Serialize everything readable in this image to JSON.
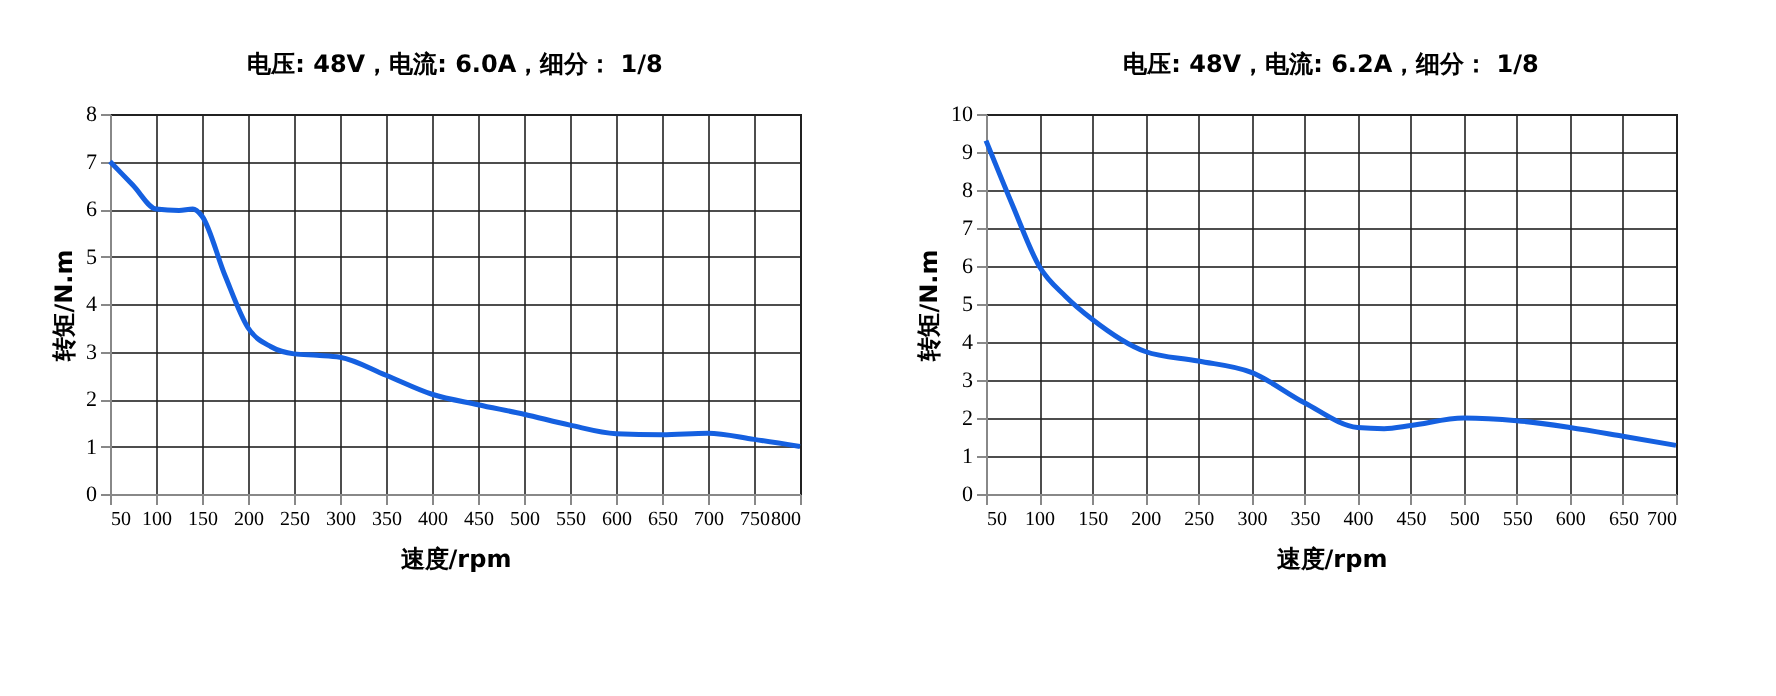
{
  "chart_data": [
    {
      "type": "line",
      "subtitle": "电压: 48V，电流: 6.0A，细分： 1/8",
      "xlabel": "速度/rpm",
      "ylabel": "转矩/N.m",
      "x": [
        50,
        75,
        100,
        125,
        140,
        150,
        175,
        200,
        225,
        250,
        275,
        300,
        350,
        400,
        450,
        500,
        550,
        600,
        650,
        700,
        750,
        800
      ],
      "series": [
        {
          "color": "#1560e0",
          "values": [
            7.0,
            6.5,
            6.0,
            5.97,
            6.0,
            5.85,
            4.6,
            3.5,
            3.1,
            2.95,
            2.92,
            2.88,
            2.5,
            2.1,
            1.88,
            1.68,
            1.45,
            1.27,
            1.25,
            1.28,
            1.15,
            1.0
          ]
        }
      ],
      "xlim": [
        50,
        800
      ],
      "xticks": [
        50,
        100,
        150,
        200,
        250,
        300,
        350,
        400,
        450,
        500,
        550,
        600,
        650,
        700,
        750,
        800
      ],
      "ylim": [
        0,
        8
      ],
      "yticks": [
        0,
        1,
        2,
        3,
        4,
        5,
        6,
        7,
        8
      ],
      "grid": true,
      "marker": "none",
      "line_style": "solid"
    },
    {
      "type": "line",
      "subtitle": "电压: 48V，电流: 6.2A，细分： 1/8",
      "xlabel": "速度/rpm",
      "ylabel": "转矩/N.m",
      "x": [
        50,
        75,
        100,
        125,
        150,
        200,
        250,
        300,
        350,
        400,
        425,
        450,
        500,
        550,
        600,
        650,
        700
      ],
      "series": [
        {
          "color": "#1560e0",
          "values": [
            9.3,
            7.6,
            6.0,
            5.2,
            4.6,
            3.75,
            3.5,
            3.2,
            2.4,
            1.75,
            1.72,
            1.8,
            2.0,
            1.93,
            1.75,
            1.52,
            1.28
          ]
        }
      ],
      "xlim": [
        50,
        700
      ],
      "xticks": [
        50,
        100,
        150,
        200,
        250,
        300,
        350,
        400,
        450,
        500,
        550,
        600,
        650,
        700
      ],
      "ylim": [
        0,
        10
      ],
      "yticks": [
        0,
        1,
        2,
        3,
        4,
        5,
        6,
        7,
        8,
        9,
        10
      ],
      "grid": true,
      "marker": "none",
      "line_style": "solid"
    }
  ]
}
